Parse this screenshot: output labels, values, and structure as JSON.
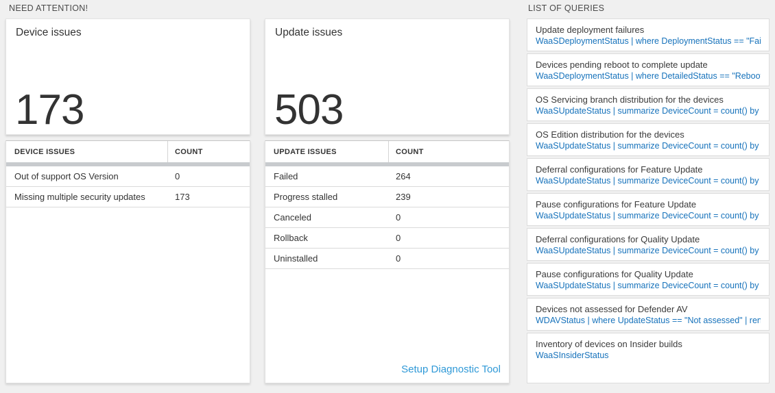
{
  "headers": {
    "need_attention": "NEED ATTENTION!",
    "list_of_queries": "LIST OF QUERIES"
  },
  "device_panel": {
    "title": "Device issues",
    "count": "173",
    "table": {
      "columns": [
        "DEVICE ISSUES",
        "COUNT"
      ],
      "rows": [
        {
          "label": "Out of support OS Version",
          "count": "0"
        },
        {
          "label": "Missing multiple security updates",
          "count": "173"
        }
      ]
    }
  },
  "update_panel": {
    "title": "Update issues",
    "count": "503",
    "table": {
      "columns": [
        "UPDATE ISSUES",
        "COUNT"
      ],
      "rows": [
        {
          "label": "Failed",
          "count": "264"
        },
        {
          "label": "Progress stalled",
          "count": "239"
        },
        {
          "label": "Canceled",
          "count": "0"
        },
        {
          "label": "Rollback",
          "count": "0"
        },
        {
          "label": "Uninstalled",
          "count": "0"
        }
      ]
    },
    "link_label": "Setup Diagnostic Tool"
  },
  "queries": {
    "items": [
      {
        "title": "Update deployment failures",
        "query": "WaaSDeploymentStatus | where DeploymentStatus == \"Failed\" |..."
      },
      {
        "title": "Devices pending reboot to complete update",
        "query": "WaaSDeploymentStatus | where DetailedStatus == \"Reboot pend..."
      },
      {
        "title": "OS Servicing branch distribution for the devices",
        "query": "WaaSUpdateStatus | summarize DeviceCount = count() by OSSer..."
      },
      {
        "title": "OS Edition distribution for the devices",
        "query": "WaaSUpdateStatus | summarize DeviceCount = count() by OSEdit..."
      },
      {
        "title": "Deferral configurations for Feature Update",
        "query": "WaaSUpdateStatus | summarize DeviceCount = count() by Featur..."
      },
      {
        "title": "Pause configurations for Feature Update",
        "query": "WaaSUpdateStatus | summarize DeviceCount = count() by Featur..."
      },
      {
        "title": "Deferral configurations for Quality Update",
        "query": "WaaSUpdateStatus | summarize DeviceCount = count() by Qualit..."
      },
      {
        "title": "Pause configurations for Quality Update",
        "query": "WaaSUpdateStatus | summarize DeviceCount = count() by Qualit..."
      },
      {
        "title": "Devices not assessed for Defender AV",
        "query": "WDAVStatus | where UpdateStatus == \"Not assessed\" | render ta..."
      },
      {
        "title": "Inventory of devices on Insider builds",
        "query": "WaaSInsiderStatus"
      }
    ]
  },
  "colors": {
    "query_blue": "#1672bb",
    "link_blue": "#2f99d7",
    "page_background": "#f0f0f0",
    "scrollbar_gray": "#c8cbce"
  }
}
